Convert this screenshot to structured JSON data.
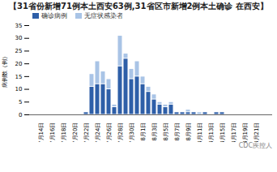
{
  "chart_data": {
    "type": "bar",
    "stacked": true,
    "title": "【31省份新增71例本土西安63例,31省区市新增2例本土确诊 在西安】",
    "ylabel": "病例数（例）",
    "annotations": [
      "CDC疾控人"
    ],
    "legend": "top-left",
    "grid": false,
    "categories": [
      "7月14日",
      null,
      "7月16日",
      null,
      "7月18日",
      null,
      "7月20日",
      null,
      "7月22日",
      null,
      "7月24日",
      null,
      "7月26日",
      null,
      "7月28日",
      null,
      "7月30日",
      null,
      "8月1日",
      null,
      "8月3日",
      null,
      "8月5日",
      null,
      "8月7日",
      null,
      "8月9日",
      null,
      "8月11日",
      null,
      "8月13日",
      null,
      "8月15日",
      null,
      "8月17日",
      null,
      "8月19日",
      null,
      "8月21日",
      null
    ],
    "series": [
      {
        "name": "确诊病例",
        "color": "#2e5fa8",
        "values": [
          0,
          0,
          0,
          0,
          0,
          0,
          0,
          0,
          1,
          11,
          12,
          12,
          10,
          3,
          19,
          22,
          14,
          15,
          12,
          9,
          6,
          4,
          3,
          4,
          1,
          1,
          1,
          1,
          0,
          1,
          0,
          1,
          1,
          0,
          0,
          0,
          0,
          0,
          0,
          0
        ]
      },
      {
        "name": "无症状感染者",
        "color": "#a9c4e6",
        "values": [
          0,
          0,
          0,
          0,
          0,
          0,
          0,
          0,
          0,
          5,
          9,
          5,
          4,
          1,
          12,
          2,
          4,
          6,
          3,
          2,
          2,
          1,
          1,
          1,
          0,
          0,
          1,
          0,
          1,
          0,
          0,
          0,
          0,
          0,
          0,
          0,
          0,
          0,
          0,
          0
        ]
      }
    ],
    "ylim": [
      0,
      35
    ],
    "yticks": [
      0,
      5,
      10,
      15,
      20,
      25,
      30,
      35
    ]
  }
}
